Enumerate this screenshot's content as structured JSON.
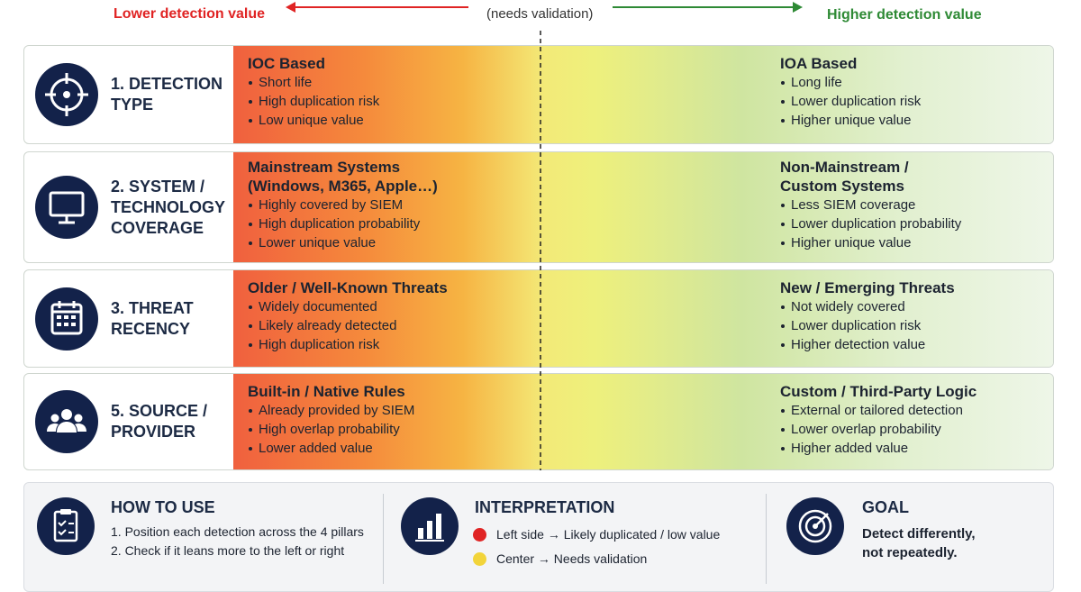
{
  "header": {
    "left": "Lower detection value",
    "center": "(needs validation)",
    "right": "Higher detection value"
  },
  "pillars": [
    {
      "label": [
        "1. DETECTION",
        "TYPE"
      ],
      "icon": "target",
      "left": {
        "title": [
          "IOC Based"
        ],
        "points": [
          "Short life",
          "High duplication risk",
          "Low unique value"
        ]
      },
      "right": {
        "title": [
          "IOA Based"
        ],
        "points": [
          "Long life",
          "Lower duplication risk",
          "Higher unique value"
        ]
      }
    },
    {
      "label": [
        "2. SYSTEM /",
        "TECHNOLOGY",
        "COVERAGE"
      ],
      "icon": "monitor",
      "left": {
        "title": [
          "Mainstream Systems",
          "(Windows, M365, Apple…)"
        ],
        "points": [
          "Highly covered by SIEM",
          "High duplication probability",
          "Lower unique value"
        ]
      },
      "right": {
        "title": [
          "Non-Mainstream /",
          "Custom Systems"
        ],
        "points": [
          "Less SIEM coverage",
          "Lower duplication probability",
          "Higher unique value"
        ]
      }
    },
    {
      "label": [
        "3. THREAT",
        "RECENCY"
      ],
      "icon": "calendar",
      "left": {
        "title": [
          "Older / Well-Known Threats"
        ],
        "points": [
          "Widely documented",
          "Likely already detected",
          "High duplication risk"
        ]
      },
      "right": {
        "title": [
          "New / Emerging Threats"
        ],
        "points": [
          "Not widely covered",
          "Lower duplication risk",
          "Higher detection value"
        ]
      }
    },
    {
      "label": [
        "5. SOURCE /",
        "PROVIDER"
      ],
      "icon": "people",
      "left": {
        "title": [
          "Built-in / Native Rules"
        ],
        "points": [
          "Already provided by SIEM",
          "High overlap probability",
          "Lower added value"
        ]
      },
      "right": {
        "title": [
          "Custom / Third-Party Logic"
        ],
        "points": [
          "External or tailored detection",
          "Lower overlap probability",
          "Higher added value"
        ]
      }
    }
  ],
  "panels": {
    "how_to_use": {
      "title": "HOW TO USE",
      "items": [
        "1.  Position each detection across the 4 pillars",
        "2.  Check if it leans more to the left or right"
      ]
    },
    "interpretation": {
      "title": "INTERPRETATION",
      "items": [
        {
          "color": "#e02424",
          "text": "Left side → Likely duplicated / low value"
        },
        {
          "color": "#f2d43a",
          "text": "Center → Needs validation"
        }
      ]
    },
    "goal": {
      "title": "GOAL",
      "text": [
        "Detect differently,",
        "not repeatedly."
      ]
    }
  }
}
